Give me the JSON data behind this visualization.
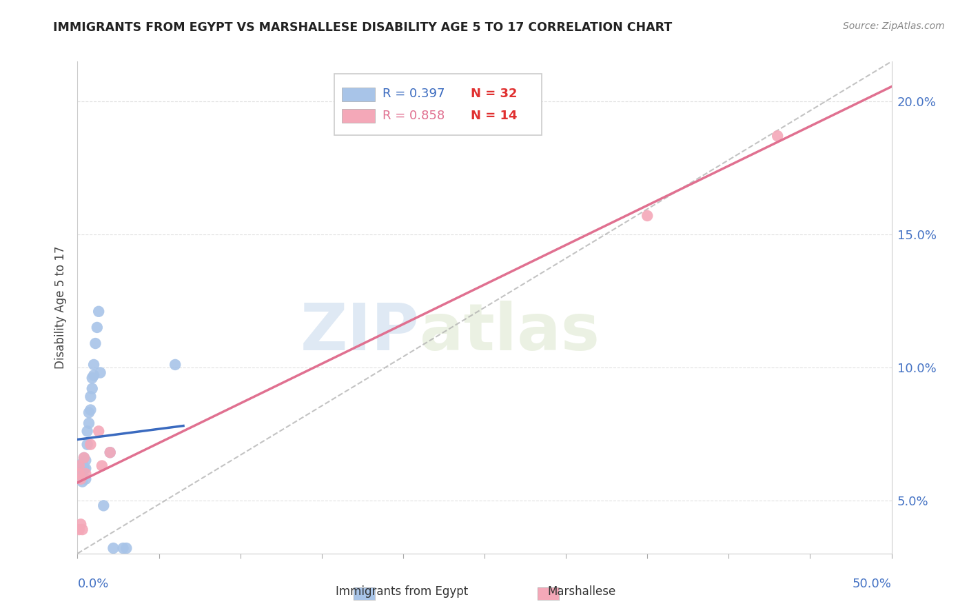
{
  "title": "IMMIGRANTS FROM EGYPT VS MARSHALLESE DISABILITY AGE 5 TO 17 CORRELATION CHART",
  "source": "Source: ZipAtlas.com",
  "ylabel": "Disability Age 5 to 17",
  "ytick_values": [
    0.05,
    0.1,
    0.15,
    0.2
  ],
  "xlim": [
    0.0,
    0.5
  ],
  "ylim": [
    0.03,
    0.215
  ],
  "legend_r1": "R = 0.397",
  "legend_n1": "N = 32",
  "legend_r2": "R = 0.858",
  "legend_n2": "N = 14",
  "color_egypt": "#a8c4e8",
  "color_marshallese": "#f4a8b8",
  "color_line_egypt": "#3a6abf",
  "color_line_marshallese": "#e07090",
  "color_r1": "#3a6abf",
  "color_r2": "#e07090",
  "color_n": "#e03030",
  "egypt_x": [
    0.001,
    0.001,
    0.002,
    0.002,
    0.003,
    0.003,
    0.003,
    0.004,
    0.004,
    0.005,
    0.005,
    0.005,
    0.006,
    0.006,
    0.007,
    0.007,
    0.008,
    0.008,
    0.009,
    0.009,
    0.01,
    0.01,
    0.011,
    0.012,
    0.013,
    0.014,
    0.016,
    0.02,
    0.022,
    0.028,
    0.03,
    0.06
  ],
  "egypt_y": [
    0.06,
    0.058,
    0.063,
    0.059,
    0.064,
    0.061,
    0.057,
    0.066,
    0.062,
    0.065,
    0.062,
    0.058,
    0.076,
    0.071,
    0.083,
    0.079,
    0.089,
    0.084,
    0.096,
    0.092,
    0.101,
    0.097,
    0.109,
    0.115,
    0.121,
    0.098,
    0.048,
    0.068,
    0.032,
    0.032,
    0.032,
    0.101
  ],
  "marshallese_x": [
    0.001,
    0.001,
    0.001,
    0.002,
    0.002,
    0.003,
    0.004,
    0.005,
    0.008,
    0.013,
    0.015,
    0.02,
    0.35,
    0.43
  ],
  "marshallese_y": [
    0.063,
    0.06,
    0.039,
    0.058,
    0.041,
    0.039,
    0.066,
    0.06,
    0.071,
    0.076,
    0.063,
    0.068,
    0.157,
    0.187
  ],
  "watermark_zip": "ZIP",
  "watermark_atlas": "atlas",
  "background_color": "#ffffff",
  "grid_color": "#e0e0e0",
  "spine_color": "#cccccc"
}
